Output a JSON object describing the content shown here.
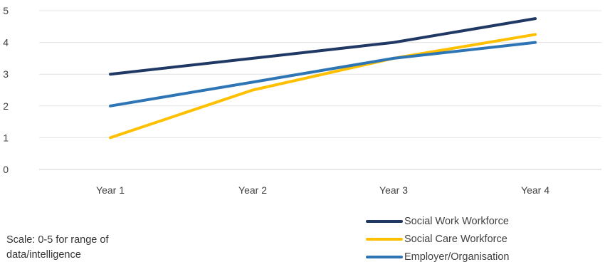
{
  "chart_data": {
    "type": "line",
    "categories": [
      "Year 1",
      "Year 2",
      "Year 3",
      "Year 4"
    ],
    "ylim": [
      0,
      5
    ],
    "yticks": [
      0,
      1,
      2,
      3,
      4,
      5
    ],
    "grid": true,
    "legend_position": "bottom-right",
    "series": [
      {
        "name": "Social Work Workforce",
        "values": [
          3,
          3.5,
          4,
          4.75
        ],
        "color": "#203864"
      },
      {
        "name": "Social Care Workforce",
        "values": [
          1,
          2.5,
          3.5,
          4.25
        ],
        "color": "#FFC000"
      },
      {
        "name": "Employer/Organisation",
        "values": [
          2,
          2.75,
          3.5,
          4
        ],
        "color": "#2E75B6"
      }
    ]
  },
  "note": {
    "line1": "Scale: 0-5 for range of",
    "line2": "data/intelligence"
  }
}
